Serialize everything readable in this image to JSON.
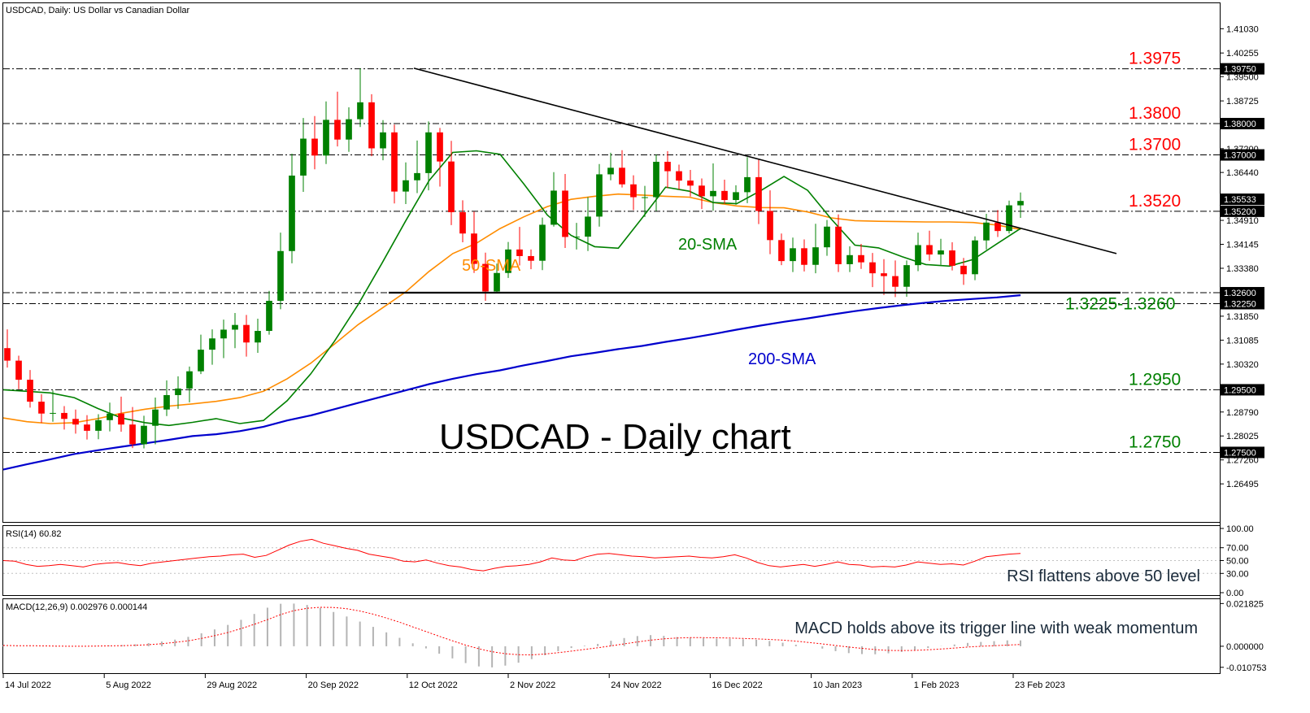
{
  "header": {
    "main": "USDCAD, Daily:  US Dollar vs Canadian Dollar",
    "rsi": "RSI(14) 60.82",
    "macd": "MACD(12,26,9) 0.002976 0.000144"
  },
  "chart_data": {
    "type": "candlestick",
    "title": "USDCAD - Daily chart",
    "price_axis_ticks": [
      "1.41030",
      "1.40255",
      "1.39500",
      "1.38725",
      "1.37955",
      "1.37200",
      "1.36440",
      "1.35665",
      "1.34910",
      "1.34145",
      "1.33380",
      "1.32625",
      "1.31850",
      "1.31085",
      "1.30320",
      "1.29550",
      "1.28790",
      "1.28025",
      "1.27260",
      "1.26495"
    ],
    "price_range": [
      1.2598,
      1.4148
    ],
    "date_ticks": [
      "14 Jul 2022",
      "5 Aug 2022",
      "29 Aug 2022",
      "20 Sep 2022",
      "12 Oct 2022",
      "2 Nov 2022",
      "24 Nov 2022",
      "16 Dec 2022",
      "10 Jan 2023",
      "1 Feb 2023",
      "23 Feb 2023"
    ],
    "levels": [
      {
        "label": "1.3975",
        "tag": "1.39750",
        "value": 1.3975,
        "color": "#ff0000"
      },
      {
        "label": "1.3800",
        "tag": "1.38000",
        "value": 1.38,
        "color": "#ff0000"
      },
      {
        "label": "1.3700",
        "tag": "1.37000",
        "value": 1.37,
        "color": "#ff0000"
      },
      {
        "label": "1.3520",
        "tag": "1.35200",
        "value": 1.352,
        "color": "#ff0000"
      },
      {
        "label": "1.3225-1.3260",
        "tag": "1.32600",
        "tag2": "1.32250",
        "value": 1.326,
        "value2": 1.3225,
        "color": "#008000"
      },
      {
        "label": "1.2950",
        "tag": "1.29500",
        "value": 1.295,
        "color": "#008000"
      },
      {
        "label": "1.2750",
        "tag": "1.27500",
        "value": 1.275,
        "color": "#008000"
      }
    ],
    "current_price_tag": "1.35533",
    "current_price": 1.35533,
    "trendline": {
      "start_date": "13 Oct 2022",
      "start_price": 1.3977,
      "end_date": "10 Mar 2023",
      "end_price": 1.3385
    },
    "support_line": {
      "start_date": "2 Nov 2022",
      "end_date": "28 Feb 2023",
      "value": 1.326
    },
    "annotations": [
      {
        "text": "50-SMA",
        "color": "#ff8c00"
      },
      {
        "text": "20-SMA",
        "color": "#008000"
      },
      {
        "text": "200-SMA",
        "color": "#0000cd"
      }
    ],
    "series": [
      {
        "name": "20-SMA",
        "color": "#008000",
        "values": [
          1.295,
          1.2945,
          1.294,
          1.2925,
          1.289,
          1.286,
          1.2845,
          1.2836,
          1.2846,
          1.2858,
          1.2842,
          1.2852,
          1.2915,
          1.3001,
          1.3105,
          1.3222,
          1.3353,
          1.3488,
          1.3618,
          1.3708,
          1.3713,
          1.3702,
          1.3608,
          1.3508,
          1.3443,
          1.3407,
          1.3402,
          1.3498,
          1.3597,
          1.3584,
          1.3548,
          1.3544,
          1.3585,
          1.3631,
          1.3587,
          1.3495,
          1.3412,
          1.3403,
          1.3375,
          1.335,
          1.3345,
          1.3366,
          1.3416,
          1.3465
        ]
      },
      {
        "name": "50-SMA",
        "color": "#ff8c00",
        "values": [
          1.286,
          1.2848,
          1.2842,
          1.2845,
          1.2858,
          1.2875,
          1.2888,
          1.2898,
          1.2905,
          1.2913,
          1.2925,
          1.2945,
          1.2985,
          1.3035,
          1.3096,
          1.3158,
          1.321,
          1.3262,
          1.3328,
          1.3385,
          1.3418,
          1.3465,
          1.3502,
          1.3535,
          1.3558,
          1.3568,
          1.3575,
          1.3572,
          1.3568,
          1.3565,
          1.3548,
          1.3537,
          1.3532,
          1.3531,
          1.3518,
          1.3499,
          1.349,
          1.3488,
          1.3487,
          1.3486,
          1.3486,
          1.3484,
          1.3476,
          1.3462
        ]
      },
      {
        "name": "200-SMA",
        "color": "#0000cd",
        "values": [
          1.2695,
          1.2712,
          1.2728,
          1.2745,
          1.2757,
          1.2768,
          1.2779,
          1.279,
          1.2802,
          1.2808,
          1.2818,
          1.2832,
          1.2852,
          1.2868,
          1.2888,
          1.2908,
          1.2928,
          1.2948,
          1.2968,
          1.2985,
          1.3,
          1.3012,
          1.3028,
          1.3042,
          1.3057,
          1.3068,
          1.308,
          1.309,
          1.3103,
          1.3115,
          1.3128,
          1.3142,
          1.3155,
          1.3167,
          1.3178,
          1.319,
          1.3201,
          1.3211,
          1.322,
          1.3228,
          1.3235,
          1.324,
          1.3245,
          1.3252
        ]
      }
    ],
    "candles": [
      [
        1.3083,
        1.3143,
        1.3021,
        1.3043
      ],
      [
        1.3043,
        1.3059,
        1.2952,
        1.2982
      ],
      [
        1.2982,
        1.3013,
        1.2893,
        1.2912
      ],
      [
        1.2912,
        1.2936,
        1.2844,
        1.2874
      ],
      [
        1.2874,
        1.2948,
        1.2848,
        1.2876
      ],
      [
        1.2876,
        1.2898,
        1.2823,
        1.2857
      ],
      [
        1.2857,
        1.2887,
        1.281,
        1.2839
      ],
      [
        1.2839,
        1.2869,
        1.2791,
        1.2819
      ],
      [
        1.2819,
        1.2872,
        1.2792,
        1.2853
      ],
      [
        1.2853,
        1.2909,
        1.2817,
        1.2874
      ],
      [
        1.2874,
        1.2928,
        1.2816,
        1.2839
      ],
      [
        1.2839,
        1.2895,
        1.2764,
        1.2776
      ],
      [
        1.2776,
        1.2867,
        1.2763,
        1.2835
      ],
      [
        1.2835,
        1.2925,
        1.2776,
        1.2887
      ],
      [
        1.2887,
        1.298,
        1.2866,
        1.2933
      ],
      [
        1.2933,
        1.2993,
        1.2889,
        1.2954
      ],
      [
        1.2954,
        1.3024,
        1.291,
        1.3009
      ],
      [
        1.3009,
        1.3126,
        1.3,
        1.3078
      ],
      [
        1.3078,
        1.3143,
        1.303,
        1.3114
      ],
      [
        1.3114,
        1.3174,
        1.3051,
        1.3142
      ],
      [
        1.3142,
        1.3195,
        1.3083,
        1.3157
      ],
      [
        1.3157,
        1.3189,
        1.3056,
        1.3101
      ],
      [
        1.3101,
        1.3177,
        1.3068,
        1.3138
      ],
      [
        1.3138,
        1.3266,
        1.3126,
        1.3234
      ],
      [
        1.3234,
        1.3452,
        1.3207,
        1.3393
      ],
      [
        1.3393,
        1.3704,
        1.3354,
        1.3634
      ],
      [
        1.3634,
        1.3818,
        1.3582,
        1.3752
      ],
      [
        1.3752,
        1.3824,
        1.3654,
        1.3698
      ],
      [
        1.3698,
        1.3871,
        1.3671,
        1.3812
      ],
      [
        1.3812,
        1.3902,
        1.3727,
        1.3749
      ],
      [
        1.3749,
        1.3852,
        1.371,
        1.3814
      ],
      [
        1.3814,
        1.3977,
        1.3789,
        1.3868
      ],
      [
        1.3868,
        1.3894,
        1.3696,
        1.3721
      ],
      [
        1.3721,
        1.3811,
        1.3683,
        1.3772
      ],
      [
        1.3772,
        1.3797,
        1.3545,
        1.3583
      ],
      [
        1.3583,
        1.3676,
        1.3543,
        1.3619
      ],
      [
        1.3619,
        1.3746,
        1.3578,
        1.3642
      ],
      [
        1.3642,
        1.3807,
        1.3587,
        1.3772
      ],
      [
        1.3772,
        1.3786,
        1.3599,
        1.3679
      ],
      [
        1.3679,
        1.3745,
        1.3476,
        1.3517
      ],
      [
        1.3517,
        1.3555,
        1.3421,
        1.3449
      ],
      [
        1.3449,
        1.3519,
        1.3323,
        1.3352
      ],
      [
        1.3352,
        1.3388,
        1.3234,
        1.3264
      ],
      [
        1.3264,
        1.3353,
        1.3258,
        1.3323
      ],
      [
        1.3323,
        1.3422,
        1.3307,
        1.3398
      ],
      [
        1.3398,
        1.347,
        1.3347,
        1.3377
      ],
      [
        1.3377,
        1.3398,
        1.3335,
        1.3362
      ],
      [
        1.3362,
        1.35,
        1.3332,
        1.3477
      ],
      [
        1.3477,
        1.3645,
        1.3471,
        1.3586
      ],
      [
        1.3586,
        1.3639,
        1.3403,
        1.3438
      ],
      [
        1.3438,
        1.3483,
        1.3398,
        1.3439
      ],
      [
        1.3439,
        1.3565,
        1.3393,
        1.3503
      ],
      [
        1.3503,
        1.3671,
        1.3471,
        1.3638
      ],
      [
        1.3638,
        1.3707,
        1.3619,
        1.3659
      ],
      [
        1.3659,
        1.3715,
        1.3596,
        1.3606
      ],
      [
        1.3606,
        1.3635,
        1.3524,
        1.3565
      ],
      [
        1.3565,
        1.3601,
        1.3502,
        1.3565
      ],
      [
        1.3565,
        1.3701,
        1.3521,
        1.3678
      ],
      [
        1.3678,
        1.3712,
        1.3594,
        1.3648
      ],
      [
        1.3648,
        1.3669,
        1.3589,
        1.3618
      ],
      [
        1.3618,
        1.3652,
        1.3567,
        1.3602
      ],
      [
        1.3602,
        1.3625,
        1.3527,
        1.3568
      ],
      [
        1.3568,
        1.3673,
        1.3522,
        1.3585
      ],
      [
        1.3585,
        1.3621,
        1.3544,
        1.3556
      ],
      [
        1.3556,
        1.3603,
        1.3541,
        1.3581
      ],
      [
        1.3581,
        1.3693,
        1.3546,
        1.3629
      ],
      [
        1.3629,
        1.3687,
        1.3479,
        1.3521
      ],
      [
        1.3521,
        1.3587,
        1.3383,
        1.3428
      ],
      [
        1.3428,
        1.3449,
        1.3348,
        1.3361
      ],
      [
        1.3361,
        1.3436,
        1.3326,
        1.3402
      ],
      [
        1.3402,
        1.343,
        1.3328,
        1.3349
      ],
      [
        1.3349,
        1.348,
        1.3322,
        1.3405
      ],
      [
        1.3405,
        1.3492,
        1.3378,
        1.3471
      ],
      [
        1.3471,
        1.351,
        1.3326,
        1.3351
      ],
      [
        1.3351,
        1.3408,
        1.3326,
        1.338
      ],
      [
        1.338,
        1.3416,
        1.3336,
        1.3357
      ],
      [
        1.3357,
        1.3387,
        1.3278,
        1.3322
      ],
      [
        1.3322,
        1.3367,
        1.3253,
        1.3313
      ],
      [
        1.3313,
        1.3363,
        1.3246,
        1.3279
      ],
      [
        1.3279,
        1.3363,
        1.3247,
        1.3348
      ],
      [
        1.3348,
        1.3452,
        1.3329,
        1.3412
      ],
      [
        1.3412,
        1.3458,
        1.3362,
        1.3382
      ],
      [
        1.3382,
        1.3432,
        1.3349,
        1.3395
      ],
      [
        1.3395,
        1.3421,
        1.3331,
        1.3346
      ],
      [
        1.3346,
        1.3371,
        1.3285,
        1.3319
      ],
      [
        1.3319,
        1.344,
        1.33,
        1.3427
      ],
      [
        1.3427,
        1.3512,
        1.3398,
        1.3484
      ],
      [
        1.3484,
        1.3524,
        1.3438,
        1.3457
      ],
      [
        1.3457,
        1.3554,
        1.3449,
        1.3539
      ],
      [
        1.3539,
        1.358,
        1.3499,
        1.3553
      ]
    ],
    "rsi": {
      "label": "RSI(14) 60.82",
      "levels": [
        "100.00",
        "70.00",
        "50.00",
        "30.00",
        "0.00"
      ],
      "values": [
        50,
        49,
        44,
        41,
        42,
        44,
        42,
        40,
        44,
        46,
        47,
        44,
        42,
        46,
        48,
        50,
        52,
        54,
        56,
        57,
        59,
        60,
        55,
        58,
        66,
        74,
        80,
        83,
        77,
        73,
        69,
        66,
        60,
        57,
        54,
        49,
        48,
        51,
        46,
        42,
        40,
        36,
        34,
        38,
        41,
        42,
        44,
        48,
        54,
        51,
        50,
        56,
        60,
        61,
        59,
        57,
        56,
        54,
        55,
        56,
        57,
        55,
        54,
        56,
        59,
        54,
        47,
        42,
        40,
        42,
        44,
        41,
        44,
        48,
        44,
        43,
        40,
        41,
        40,
        43,
        48,
        46,
        44,
        45,
        43,
        49,
        56,
        58,
        60,
        61
      ]
    },
    "macd": {
      "label": "MACD(12,26,9) 0.002976 0.000144",
      "levels": [
        "0.021825",
        "0.000000",
        "-0.010753"
      ],
      "range": [
        -0.0125,
        0.0228
      ],
      "values": [
        0.0003,
        0.0002,
        0.0001,
        -0.0001,
        -0.0002,
        -0.0001,
        0,
        0.0002,
        0.0004,
        0.0006,
        0.001,
        0.0016,
        0.0024,
        0.0034,
        0.0048,
        0.0066,
        0.0086,
        0.0109,
        0.0135,
        0.0165,
        0.0197,
        0.0217,
        0.0218,
        0.0211,
        0.0196,
        0.0175,
        0.0152,
        0.0126,
        0.0099,
        0.0071,
        0.0043,
        0.0015,
        -0.0011,
        -0.0038,
        -0.0062,
        -0.0086,
        -0.0103,
        -0.0108,
        -0.0099,
        -0.0084,
        -0.0066,
        -0.0046,
        -0.0025,
        -0.0009,
        0.0003,
        0.0012,
        0.0028,
        0.0042,
        0.0052,
        0.0057,
        0.0053,
        0.0047,
        0.0043,
        0.0041,
        0.0039,
        0.0038,
        0.0036,
        0.0033,
        0.0027,
        0.0018,
        0.0008,
        0.0,
        -0.0012,
        -0.0025,
        -0.0035,
        -0.004,
        -0.0041,
        -0.0036,
        -0.0029,
        -0.002,
        -0.0009,
        0.0001,
        0.0009,
        0.0017,
        0.0022,
        0.0026,
        0.003,
        0.003
      ],
      "signal": [
        0.0004,
        0.0003,
        0.0003,
        0.0002,
        0.0001,
        0.0,
        0.0,
        0.0001,
        0.0002,
        0.0003,
        0.0005,
        0.0008,
        0.0013,
        0.002,
        0.0028,
        0.004,
        0.0054,
        0.007,
        0.009,
        0.0112,
        0.0136,
        0.0162,
        0.0182,
        0.0194,
        0.0199,
        0.0198,
        0.0192,
        0.018,
        0.0164,
        0.0144,
        0.0123,
        0.0099,
        0.0075,
        0.0051,
        0.0028,
        0.0006,
        -0.0013,
        -0.0028,
        -0.0038,
        -0.0043,
        -0.0044,
        -0.004,
        -0.0033,
        -0.0025,
        -0.0016,
        -0.0008,
        0.0002,
        0.0012,
        0.0022,
        0.0031,
        0.0038,
        0.0042,
        0.0044,
        0.0044,
        0.0043,
        0.0042,
        0.004,
        0.0038,
        0.0035,
        0.0031,
        0.0026,
        0.0019,
        0.0012,
        0.0004,
        -0.0004,
        -0.0011,
        -0.0017,
        -0.0021,
        -0.0022,
        -0.0021,
        -0.0018,
        -0.0014,
        -0.0009,
        -0.0004,
        0.0,
        0.0003,
        0.0006,
        0.0009
      ]
    },
    "grid": false,
    "legend": "none"
  },
  "text": {
    "title": "USDCAD - Daily chart",
    "sma50": "50-SMA",
    "sma20": "20-SMA",
    "sma200": "200-SMA",
    "rsi_note": "RSI flattens above 50 level",
    "macd_note": "MACD holds above its trigger line with weak momentum"
  },
  "colors": {
    "bull": "#008000",
    "bear": "#ff0000",
    "sma20": "#008000",
    "sma50": "#ff8c00",
    "sma200": "#0000cd",
    "rsi": "#ff0000",
    "macd_hist": "#b4b4b4",
    "macd_signal": "#ff0000"
  }
}
